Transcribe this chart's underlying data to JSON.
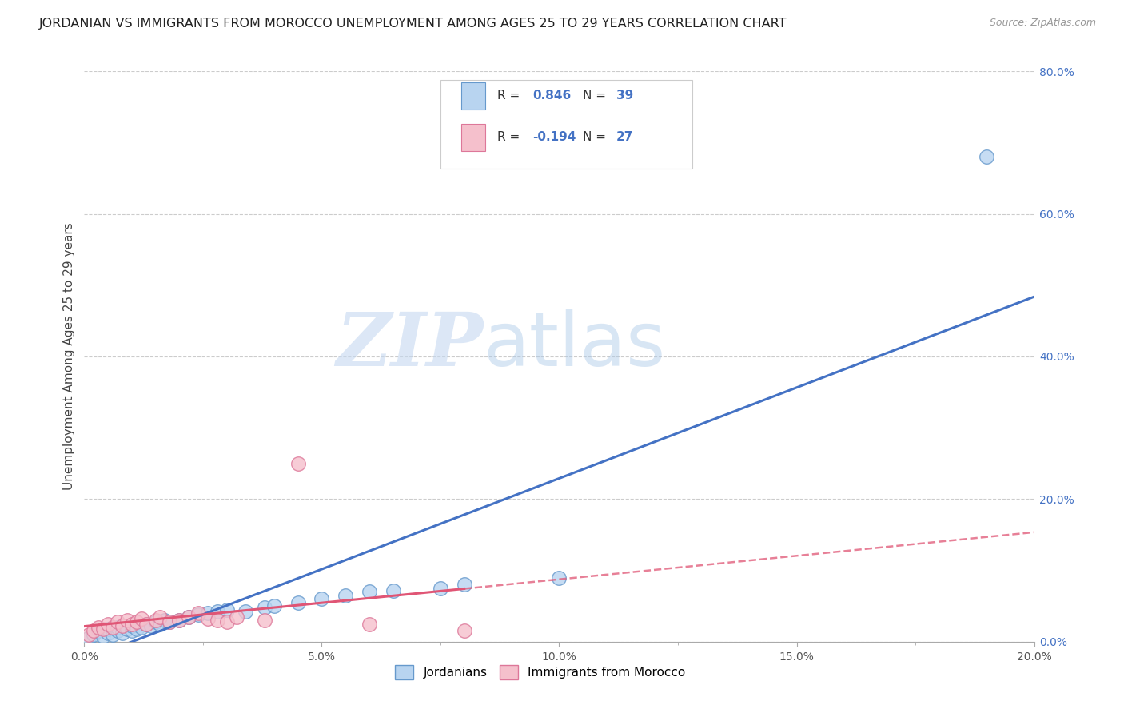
{
  "title": "JORDANIAN VS IMMIGRANTS FROM MOROCCO UNEMPLOYMENT AMONG AGES 25 TO 29 YEARS CORRELATION CHART",
  "source": "Source: ZipAtlas.com",
  "ylabel": "Unemployment Among Ages 25 to 29 years",
  "xlim": [
    0.0,
    0.2
  ],
  "ylim": [
    0.0,
    0.8
  ],
  "background_color": "#ffffff",
  "gridline_color": "#cccccc",
  "jordanians_color": "#b8d4f0",
  "jordanians_edge_color": "#6699cc",
  "morocco_color": "#f5c0cc",
  "morocco_edge_color": "#dd7799",
  "trend_jordan_color": "#4472c4",
  "trend_morocco_color": "#e05575",
  "R_jordan": 0.846,
  "N_jordan": 39,
  "R_morocco": -0.194,
  "N_morocco": 27,
  "legend_label_jordan": "Jordanians",
  "legend_label_morocco": "Immigrants from Morocco",
  "jordanians_x": [
    0.001,
    0.002,
    0.003,
    0.004,
    0.005,
    0.005,
    0.006,
    0.007,
    0.007,
    0.008,
    0.009,
    0.01,
    0.01,
    0.011,
    0.012,
    0.013,
    0.014,
    0.015,
    0.016,
    0.017,
    0.018,
    0.02,
    0.022,
    0.024,
    0.026,
    0.028,
    0.03,
    0.034,
    0.038,
    0.04,
    0.045,
    0.05,
    0.055,
    0.06,
    0.065,
    0.075,
    0.08,
    0.1,
    0.19
  ],
  "jordanians_y": [
    0.005,
    0.01,
    0.015,
    0.008,
    0.012,
    0.018,
    0.01,
    0.015,
    0.02,
    0.012,
    0.018,
    0.015,
    0.022,
    0.018,
    0.02,
    0.025,
    0.022,
    0.028,
    0.025,
    0.03,
    0.028,
    0.03,
    0.035,
    0.038,
    0.04,
    0.042,
    0.045,
    0.042,
    0.048,
    0.05,
    0.055,
    0.06,
    0.065,
    0.07,
    0.072,
    0.075,
    0.08,
    0.09,
    0.68
  ],
  "morocco_x": [
    0.001,
    0.002,
    0.003,
    0.004,
    0.005,
    0.006,
    0.007,
    0.008,
    0.009,
    0.01,
    0.011,
    0.012,
    0.013,
    0.015,
    0.016,
    0.018,
    0.02,
    0.022,
    0.024,
    0.026,
    0.028,
    0.03,
    0.032,
    0.038,
    0.045,
    0.06,
    0.08
  ],
  "morocco_y": [
    0.01,
    0.015,
    0.02,
    0.018,
    0.025,
    0.02,
    0.028,
    0.022,
    0.03,
    0.025,
    0.028,
    0.032,
    0.025,
    0.03,
    0.035,
    0.028,
    0.03,
    0.035,
    0.04,
    0.032,
    0.03,
    0.028,
    0.035,
    0.03,
    0.25,
    0.025,
    0.015
  ],
  "watermark_zip": "ZIP",
  "watermark_atlas": "atlas",
  "title_fontsize": 11.5,
  "axis_label_fontsize": 11,
  "tick_fontsize": 10,
  "source_fontsize": 9,
  "marker_size": 160
}
